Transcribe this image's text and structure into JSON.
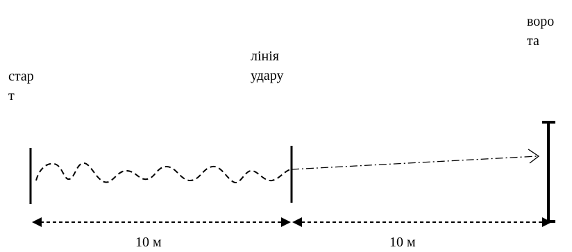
{
  "labels": {
    "start_line1": "стар",
    "start_line2": "т",
    "strike_line1": "лінія",
    "strike_line2": "удару",
    "goal_line1": "воро",
    "goal_line2": "та"
  },
  "distances": {
    "first": "10 м",
    "second": "10 м"
  },
  "colors": {
    "ink": "#000000",
    "background": "#ffffff"
  }
}
